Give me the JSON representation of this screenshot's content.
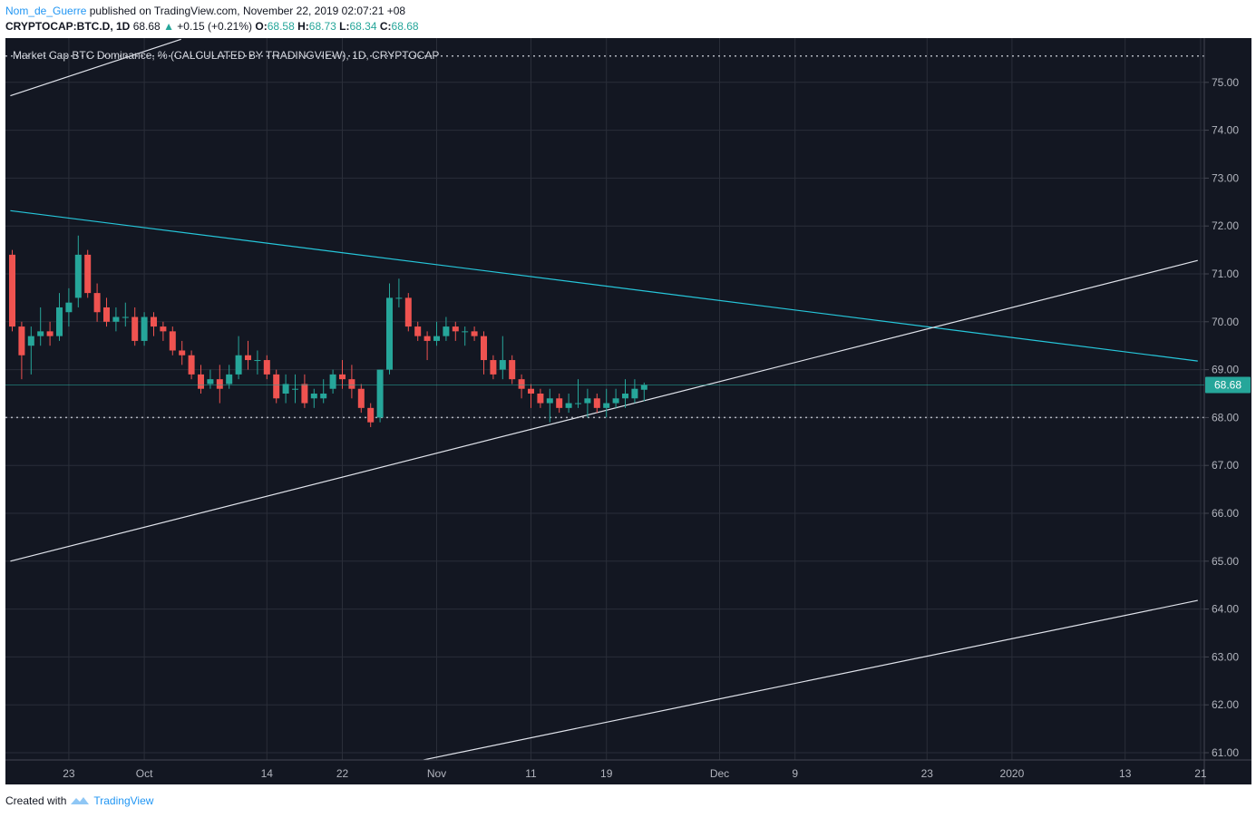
{
  "header": {
    "author": "Nom_de_Guerre",
    "published_text": "published on TradingView.com, November 22, 2019 02:07:21 +08",
    "symbol": "CRYPTOCAP:BTC.D, 1D",
    "last": "68.68",
    "change": "+0.15 (+0.21%)",
    "o_label": "O:",
    "o_value": "68.58",
    "h_label": "H:",
    "h_value": "68.73",
    "l_label": "L:",
    "l_value": "68.34",
    "c_label": "C:",
    "c_value": "68.68"
  },
  "footer": {
    "created_with": "Created with",
    "brand": "TradingView"
  },
  "colors": {
    "bg": "#131722",
    "up": "#26a69a",
    "down": "#ef5350",
    "trend_cyan": "#26c6da",
    "trend_white": "#e0e3eb",
    "price_label": "#26a69a"
  },
  "chart_data": {
    "type": "candlestick",
    "title": "Market Cap BTC Dominance, % (CALCULATED BY TRADINGVIEW), 1D, CRYPTOCAP",
    "y_ticks": [
      "61.00",
      "62.00",
      "63.00",
      "64.00",
      "65.00",
      "66.00",
      "67.00",
      "68.00",
      "69.00",
      "70.00",
      "71.00",
      "72.00",
      "73.00",
      "74.00",
      "75.00"
    ],
    "ylim": [
      60.9,
      75.9
    ],
    "x_ticks": [
      {
        "label": "23",
        "day": 6
      },
      {
        "label": "Oct",
        "day": 14
      },
      {
        "label": "14",
        "day": 27
      },
      {
        "label": "22",
        "day": 35
      },
      {
        "label": "Nov",
        "day": 45
      },
      {
        "label": "11",
        "day": 55
      },
      {
        "label": "19",
        "day": 63
      },
      {
        "label": "Dec",
        "day": 75
      },
      {
        "label": "9",
        "day": 83
      },
      {
        "label": "23",
        "day": 97
      },
      {
        "label": "2020",
        "day": 106
      },
      {
        "label": "13",
        "day": 118
      },
      {
        "label": "21",
        "day": 126
      }
    ],
    "last_price": "68.68",
    "dotted_levels": [
      75.55,
      68.0
    ],
    "trendlines": [
      {
        "color": "cyan",
        "from": [
          -0.2,
          72.32
        ],
        "to": [
          125.7,
          69.18
        ]
      },
      {
        "color": "white",
        "from": [
          -0.2,
          65.0
        ],
        "to": [
          125.7,
          71.28
        ]
      },
      {
        "color": "white",
        "from": [
          43.6,
          60.85
        ],
        "to": [
          125.7,
          64.18
        ]
      },
      {
        "color": "white",
        "from": [
          -0.2,
          74.72
        ],
        "to": [
          17.9,
          75.9
        ]
      }
    ],
    "candles": [
      {
        "d": 0,
        "o": 71.4,
        "h": 71.5,
        "l": 69.8,
        "c": 69.9
      },
      {
        "d": 1,
        "o": 69.9,
        "h": 70.0,
        "l": 68.8,
        "c": 69.3
      },
      {
        "d": 2,
        "o": 69.5,
        "h": 69.9,
        "l": 68.9,
        "c": 69.7
      },
      {
        "d": 3,
        "o": 69.7,
        "h": 70.3,
        "l": 69.5,
        "c": 69.8
      },
      {
        "d": 4,
        "o": 69.8,
        "h": 70.0,
        "l": 69.5,
        "c": 69.7
      },
      {
        "d": 5,
        "o": 69.7,
        "h": 70.6,
        "l": 69.6,
        "c": 70.3
      },
      {
        "d": 6,
        "o": 70.2,
        "h": 70.7,
        "l": 69.9,
        "c": 70.4
      },
      {
        "d": 7,
        "o": 70.5,
        "h": 71.8,
        "l": 70.3,
        "c": 71.4
      },
      {
        "d": 8,
        "o": 71.4,
        "h": 71.5,
        "l": 70.5,
        "c": 70.6
      },
      {
        "d": 9,
        "o": 70.6,
        "h": 70.8,
        "l": 70.0,
        "c": 70.2
      },
      {
        "d": 10,
        "o": 70.3,
        "h": 70.5,
        "l": 69.9,
        "c": 70.0
      },
      {
        "d": 11,
        "o": 70.0,
        "h": 70.3,
        "l": 69.8,
        "c": 70.1
      },
      {
        "d": 12,
        "o": 70.1,
        "h": 70.4,
        "l": 69.9,
        "c": 70.1
      },
      {
        "d": 13,
        "o": 70.1,
        "h": 70.3,
        "l": 69.5,
        "c": 69.6
      },
      {
        "d": 14,
        "o": 69.6,
        "h": 70.2,
        "l": 69.5,
        "c": 70.1
      },
      {
        "d": 15,
        "o": 70.1,
        "h": 70.2,
        "l": 69.7,
        "c": 69.9
      },
      {
        "d": 16,
        "o": 69.9,
        "h": 70.0,
        "l": 69.6,
        "c": 69.8
      },
      {
        "d": 17,
        "o": 69.8,
        "h": 69.9,
        "l": 69.3,
        "c": 69.4
      },
      {
        "d": 18,
        "o": 69.4,
        "h": 69.6,
        "l": 69.1,
        "c": 69.3
      },
      {
        "d": 19,
        "o": 69.3,
        "h": 69.4,
        "l": 68.8,
        "c": 68.9
      },
      {
        "d": 20,
        "o": 68.9,
        "h": 69.1,
        "l": 68.5,
        "c": 68.6
      },
      {
        "d": 21,
        "o": 68.7,
        "h": 69.0,
        "l": 68.6,
        "c": 68.8
      },
      {
        "d": 22,
        "o": 68.8,
        "h": 69.1,
        "l": 68.3,
        "c": 68.6
      },
      {
        "d": 23,
        "o": 68.7,
        "h": 69.1,
        "l": 68.6,
        "c": 68.9
      },
      {
        "d": 24,
        "o": 68.9,
        "h": 69.7,
        "l": 68.8,
        "c": 69.3
      },
      {
        "d": 25,
        "o": 69.3,
        "h": 69.6,
        "l": 69.0,
        "c": 69.2
      },
      {
        "d": 26,
        "o": 69.2,
        "h": 69.4,
        "l": 68.9,
        "c": 69.2
      },
      {
        "d": 27,
        "o": 69.2,
        "h": 69.3,
        "l": 68.8,
        "c": 68.9
      },
      {
        "d": 28,
        "o": 68.9,
        "h": 69.0,
        "l": 68.3,
        "c": 68.4
      },
      {
        "d": 29,
        "o": 68.5,
        "h": 68.9,
        "l": 68.3,
        "c": 68.7
      },
      {
        "d": 30,
        "o": 68.6,
        "h": 68.9,
        "l": 68.3,
        "c": 68.6
      },
      {
        "d": 31,
        "o": 68.7,
        "h": 68.9,
        "l": 68.2,
        "c": 68.3
      },
      {
        "d": 32,
        "o": 68.4,
        "h": 68.6,
        "l": 68.2,
        "c": 68.5
      },
      {
        "d": 33,
        "o": 68.4,
        "h": 68.8,
        "l": 68.3,
        "c": 68.5
      },
      {
        "d": 34,
        "o": 68.6,
        "h": 69.0,
        "l": 68.5,
        "c": 68.9
      },
      {
        "d": 35,
        "o": 68.9,
        "h": 69.2,
        "l": 68.6,
        "c": 68.8
      },
      {
        "d": 36,
        "o": 68.8,
        "h": 69.1,
        "l": 68.4,
        "c": 68.6
      },
      {
        "d": 37,
        "o": 68.6,
        "h": 68.7,
        "l": 68.1,
        "c": 68.2
      },
      {
        "d": 38,
        "o": 68.2,
        "h": 68.3,
        "l": 67.8,
        "c": 67.9
      },
      {
        "d": 39,
        "o": 68.0,
        "h": 69.0,
        "l": 67.9,
        "c": 69.0
      },
      {
        "d": 40,
        "o": 69.0,
        "h": 70.8,
        "l": 68.9,
        "c": 70.5
      },
      {
        "d": 41,
        "o": 70.5,
        "h": 70.9,
        "l": 70.3,
        "c": 70.5
      },
      {
        "d": 42,
        "o": 70.5,
        "h": 70.6,
        "l": 69.8,
        "c": 69.9
      },
      {
        "d": 43,
        "o": 69.9,
        "h": 70.0,
        "l": 69.6,
        "c": 69.7
      },
      {
        "d": 44,
        "o": 69.7,
        "h": 69.8,
        "l": 69.2,
        "c": 69.6
      },
      {
        "d": 45,
        "o": 69.6,
        "h": 70.0,
        "l": 69.5,
        "c": 69.7
      },
      {
        "d": 46,
        "o": 69.7,
        "h": 70.1,
        "l": 69.6,
        "c": 69.9
      },
      {
        "d": 47,
        "o": 69.9,
        "h": 70.0,
        "l": 69.6,
        "c": 69.8
      },
      {
        "d": 48,
        "o": 69.8,
        "h": 69.9,
        "l": 69.5,
        "c": 69.8
      },
      {
        "d": 49,
        "o": 69.8,
        "h": 69.9,
        "l": 69.6,
        "c": 69.7
      },
      {
        "d": 50,
        "o": 69.7,
        "h": 69.8,
        "l": 68.9,
        "c": 69.2
      },
      {
        "d": 51,
        "o": 69.2,
        "h": 69.3,
        "l": 68.8,
        "c": 68.9
      },
      {
        "d": 52,
        "o": 69.0,
        "h": 69.7,
        "l": 68.8,
        "c": 69.2
      },
      {
        "d": 53,
        "o": 69.2,
        "h": 69.3,
        "l": 68.7,
        "c": 68.8
      },
      {
        "d": 54,
        "o": 68.8,
        "h": 68.9,
        "l": 68.4,
        "c": 68.6
      },
      {
        "d": 55,
        "o": 68.6,
        "h": 68.7,
        "l": 68.2,
        "c": 68.5
      },
      {
        "d": 56,
        "o": 68.5,
        "h": 68.6,
        "l": 68.2,
        "c": 68.3
      },
      {
        "d": 57,
        "o": 68.3,
        "h": 68.6,
        "l": 67.9,
        "c": 68.4
      },
      {
        "d": 58,
        "o": 68.4,
        "h": 68.5,
        "l": 68.1,
        "c": 68.2
      },
      {
        "d": 59,
        "o": 68.2,
        "h": 68.5,
        "l": 68.1,
        "c": 68.3
      },
      {
        "d": 60,
        "o": 68.3,
        "h": 68.8,
        "l": 68.2,
        "c": 68.3
      },
      {
        "d": 61,
        "o": 68.3,
        "h": 68.6,
        "l": 68.0,
        "c": 68.4
      },
      {
        "d": 62,
        "o": 68.4,
        "h": 68.5,
        "l": 68.1,
        "c": 68.2
      },
      {
        "d": 63,
        "o": 68.2,
        "h": 68.6,
        "l": 68.0,
        "c": 68.3
      },
      {
        "d": 64,
        "o": 68.3,
        "h": 68.6,
        "l": 68.2,
        "c": 68.4
      },
      {
        "d": 65,
        "o": 68.4,
        "h": 68.8,
        "l": 68.2,
        "c": 68.5
      },
      {
        "d": 66,
        "o": 68.4,
        "h": 68.8,
        "l": 68.3,
        "c": 68.6
      },
      {
        "d": 67,
        "o": 68.58,
        "h": 68.73,
        "l": 68.34,
        "c": 68.68
      }
    ]
  }
}
